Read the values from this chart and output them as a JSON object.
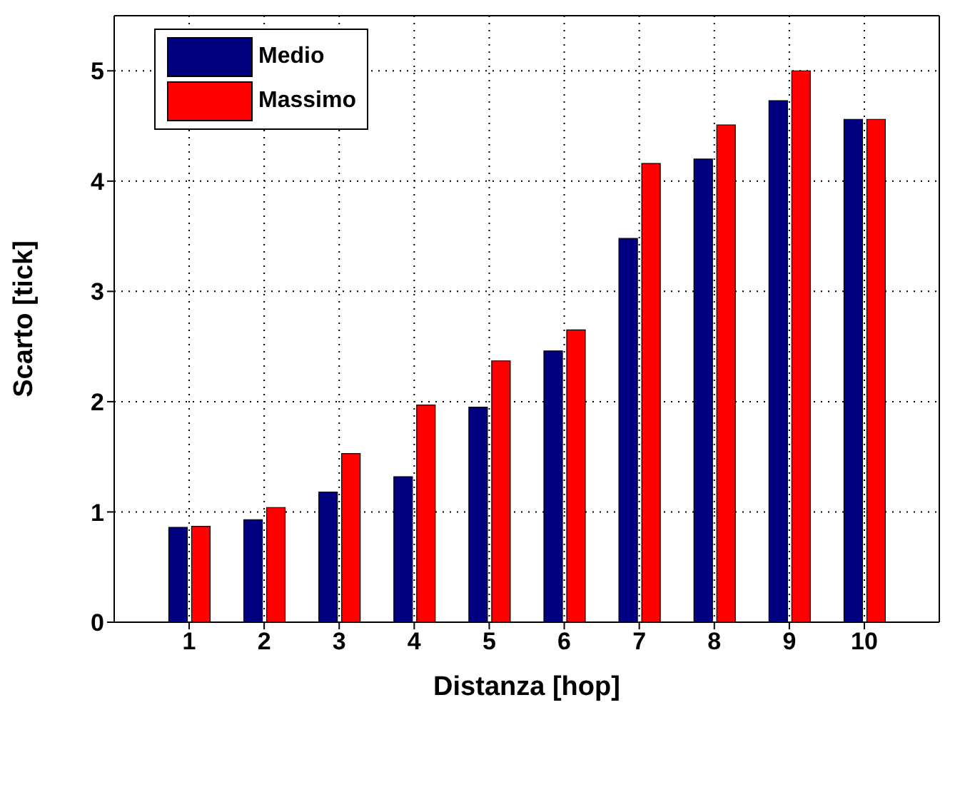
{
  "chart_data": {
    "type": "bar",
    "xlabel": "Distanza [hop]",
    "ylabel": "Scarto [tick]",
    "categories": [
      "1",
      "2",
      "3",
      "4",
      "5",
      "6",
      "7",
      "8",
      "9",
      "10"
    ],
    "series": [
      {
        "name": "Medio",
        "color": "#000080",
        "values": [
          0.86,
          0.93,
          1.18,
          1.32,
          1.95,
          2.46,
          3.48,
          4.2,
          4.73,
          4.56
        ]
      },
      {
        "name": "Massimo",
        "color": "#ff0000",
        "values": [
          0.87,
          1.04,
          1.53,
          1.97,
          2.37,
          2.65,
          4.16,
          4.51,
          5.0,
          4.56
        ]
      }
    ],
    "ylim": [
      0,
      5.5
    ],
    "yticks": [
      0,
      1,
      2,
      3,
      4,
      5
    ],
    "grid": true,
    "legend": "top left"
  }
}
